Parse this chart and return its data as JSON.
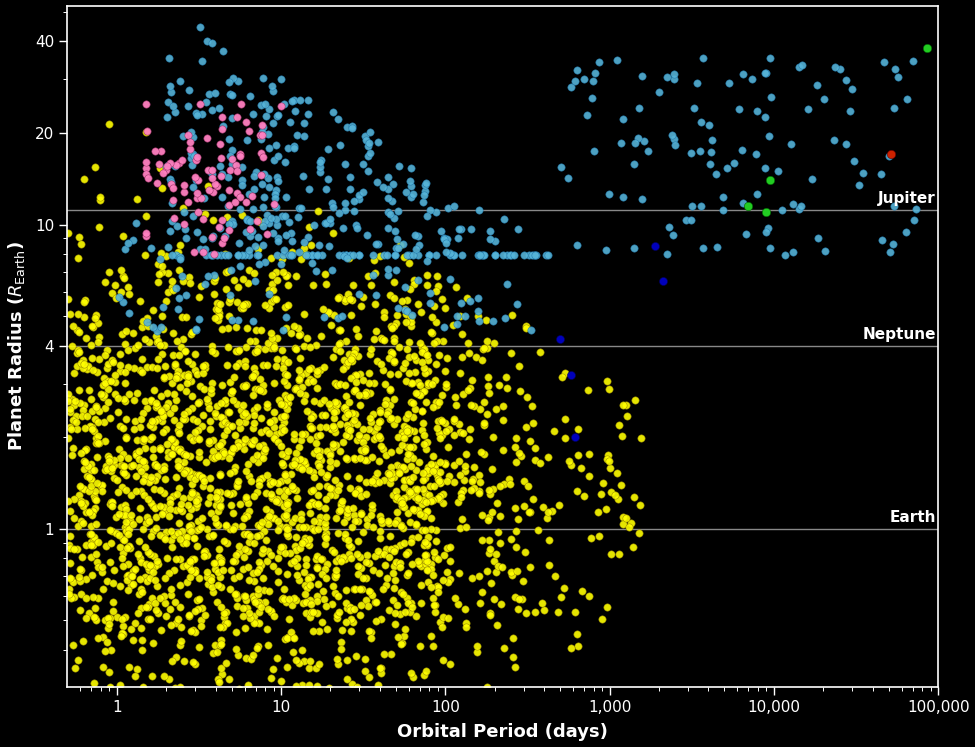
{
  "xlabel": "Orbital Period (days)",
  "ylabel": "Planet Radius ($R_{\\mathrm{Earth}}$)",
  "bg_color": "#000000",
  "text_color": "#ffffff",
  "grid_color": "#888888",
  "xlim_log": [
    -0.301,
    5.0
  ],
  "ylim_log": [
    -0.52,
    1.72
  ],
  "ref_lines": {
    "Earth": 1.0,
    "Neptune": 4.0,
    "Jupiter": 11.2
  },
  "yellow_color": "#ffff00",
  "cyan_color": "#56b4d8",
  "pink_color": "#ff80c0",
  "dark_blue_color": "#0000bb",
  "red_color": "#cc2200",
  "green_color": "#22cc22",
  "seed": 12345,
  "marker_size": 28,
  "marker_lw": 0.4
}
